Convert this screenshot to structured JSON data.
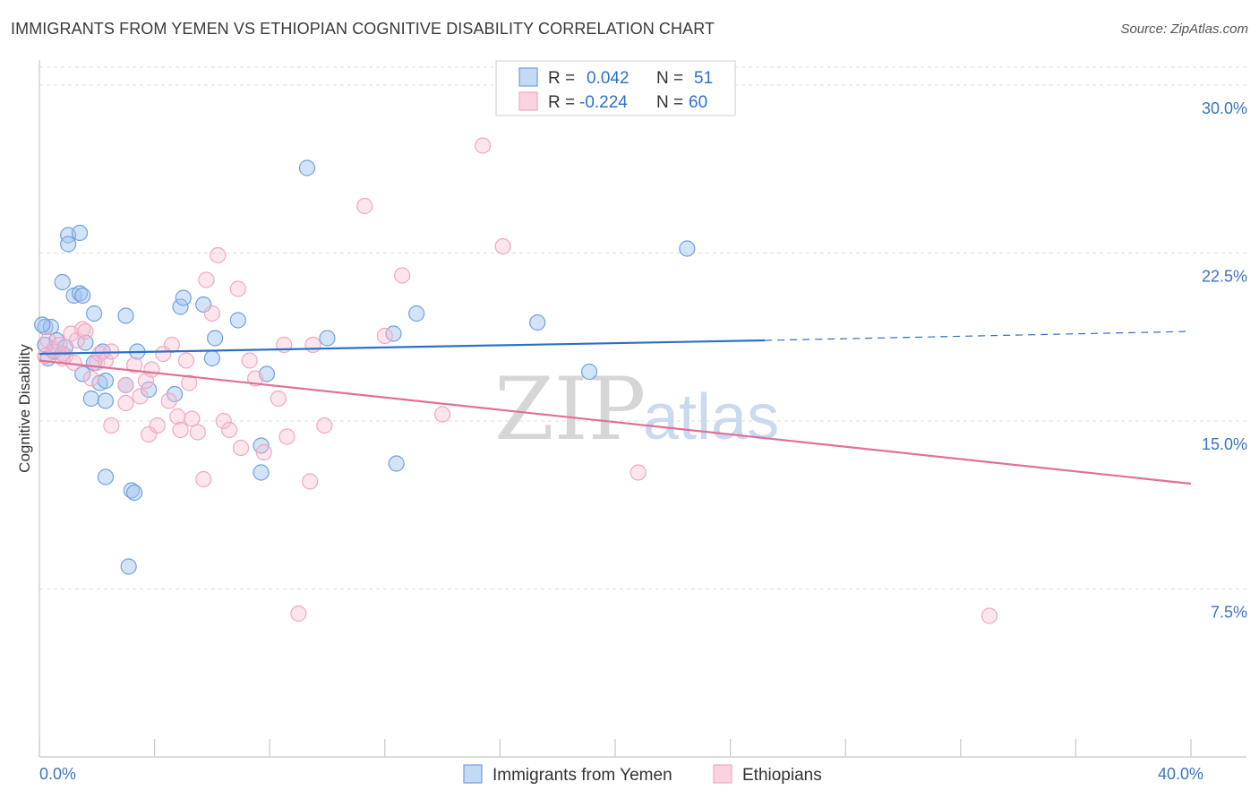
{
  "title": "IMMIGRANTS FROM YEMEN VS ETHIOPIAN COGNITIVE DISABILITY CORRELATION CHART",
  "source": "Source: ZipAtlas.com",
  "watermark": {
    "zip": "ZIP",
    "atlas": "atlas"
  },
  "chart_data": {
    "type": "scatter",
    "xlabel": "",
    "ylabel": "Cognitive Disability",
    "xlim": [
      0,
      40
    ],
    "ylim": [
      0,
      31
    ],
    "x_tick_labels": [
      {
        "value": 0,
        "label": "0.0%"
      },
      {
        "value": 40,
        "label": "40.0%"
      }
    ],
    "y_tick_labels": [
      {
        "value": 7.5,
        "label": "7.5%"
      },
      {
        "value": 15,
        "label": "15.0%"
      },
      {
        "value": 22.5,
        "label": "22.5%"
      },
      {
        "value": 30,
        "label": "30.0%"
      }
    ],
    "colors": {
      "yemen": "#6fa0e0",
      "yemen_line": "#2e6fca",
      "ethiopia": "#f2a6c0",
      "ethiopia_line": "#e07098",
      "tick": "#3b73c4",
      "grid": "#dcdcdc"
    },
    "legend": {
      "rows": [
        {
          "r_label": "R =",
          "r_value": "0.042",
          "n_label": "N =",
          "n_value": "51"
        },
        {
          "r_label": "R =",
          "r_value": "-0.224",
          "n_label": "N =",
          "n_value": "60"
        }
      ]
    },
    "series": [
      {
        "name": "Immigrants from Yemen",
        "trend": {
          "x0": 0,
          "y0": 18.0,
          "x1": 25.2,
          "y1": 18.6,
          "dash_x1": 40,
          "dash_y1": 19.0
        },
        "points": [
          [
            0.2,
            19.2
          ],
          [
            0.4,
            19.2
          ],
          [
            0.2,
            18.4
          ],
          [
            0.6,
            18.6
          ],
          [
            0.3,
            17.8
          ],
          [
            0.5,
            18.1
          ],
          [
            0.8,
            18.0
          ],
          [
            0.9,
            18.3
          ],
          [
            0.8,
            21.2
          ],
          [
            1.0,
            23.3
          ],
          [
            1.4,
            23.4
          ],
          [
            1.0,
            22.9
          ],
          [
            1.2,
            20.6
          ],
          [
            1.4,
            20.7
          ],
          [
            1.5,
            20.6
          ],
          [
            1.6,
            18.5
          ],
          [
            1.9,
            19.8
          ],
          [
            2.2,
            18.1
          ],
          [
            1.9,
            17.6
          ],
          [
            1.5,
            17.1
          ],
          [
            2.1,
            16.7
          ],
          [
            2.3,
            16.8
          ],
          [
            1.8,
            16.0
          ],
          [
            2.3,
            15.9
          ],
          [
            3.0,
            19.7
          ],
          [
            3.4,
            18.1
          ],
          [
            3.0,
            16.6
          ],
          [
            3.8,
            16.4
          ],
          [
            2.3,
            12.5
          ],
          [
            3.2,
            11.9
          ],
          [
            3.3,
            11.8
          ],
          [
            3.1,
            8.5
          ],
          [
            4.7,
            16.2
          ],
          [
            4.9,
            20.1
          ],
          [
            5.0,
            20.5
          ],
          [
            5.7,
            20.2
          ],
          [
            6.1,
            18.7
          ],
          [
            6.0,
            17.8
          ],
          [
            6.9,
            19.5
          ],
          [
            7.9,
            17.1
          ],
          [
            7.7,
            13.9
          ],
          [
            7.7,
            12.7
          ],
          [
            9.3,
            26.3
          ],
          [
            10.0,
            18.7
          ],
          [
            12.3,
            18.9
          ],
          [
            12.4,
            13.1
          ],
          [
            13.1,
            19.8
          ],
          [
            17.3,
            19.4
          ],
          [
            19.1,
            17.2
          ],
          [
            22.5,
            22.7
          ],
          [
            0.1,
            19.3
          ]
        ]
      },
      {
        "name": "Ethiopians",
        "trend": {
          "x0": 0,
          "y0": 17.7,
          "x1": 40,
          "y1": 12.2
        },
        "points": [
          [
            0.3,
            18.6
          ],
          [
            0.5,
            18.2
          ],
          [
            0.7,
            18.4
          ],
          [
            0.9,
            17.9
          ],
          [
            1.1,
            18.9
          ],
          [
            1.3,
            18.6
          ],
          [
            1.5,
            19.1
          ],
          [
            1.6,
            19.0
          ],
          [
            1.8,
            16.9
          ],
          [
            2.0,
            17.6
          ],
          [
            2.1,
            18.0
          ],
          [
            2.3,
            17.7
          ],
          [
            2.5,
            18.1
          ],
          [
            2.5,
            14.8
          ],
          [
            3.0,
            16.6
          ],
          [
            3.0,
            15.8
          ],
          [
            3.3,
            17.5
          ],
          [
            3.5,
            16.1
          ],
          [
            3.7,
            16.8
          ],
          [
            3.8,
            14.4
          ],
          [
            4.1,
            14.8
          ],
          [
            4.3,
            18.0
          ],
          [
            4.5,
            15.9
          ],
          [
            4.6,
            18.4
          ],
          [
            4.8,
            15.2
          ],
          [
            4.9,
            14.6
          ],
          [
            5.1,
            17.7
          ],
          [
            5.2,
            16.7
          ],
          [
            5.3,
            15.1
          ],
          [
            5.5,
            14.5
          ],
          [
            5.7,
            12.4
          ],
          [
            5.8,
            21.3
          ],
          [
            6.0,
            19.8
          ],
          [
            6.2,
            22.4
          ],
          [
            6.4,
            15.0
          ],
          [
            6.6,
            14.6
          ],
          [
            6.9,
            20.9
          ],
          [
            7.0,
            13.8
          ],
          [
            7.3,
            17.7
          ],
          [
            7.5,
            16.9
          ],
          [
            7.8,
            13.6
          ],
          [
            8.3,
            16.0
          ],
          [
            8.5,
            18.4
          ],
          [
            8.6,
            14.3
          ],
          [
            9.0,
            6.4
          ],
          [
            9.4,
            12.3
          ],
          [
            9.5,
            18.4
          ],
          [
            9.9,
            14.8
          ],
          [
            12.0,
            18.8
          ],
          [
            11.3,
            24.6
          ],
          [
            12.6,
            21.5
          ],
          [
            14.0,
            15.3
          ],
          [
            15.4,
            27.3
          ],
          [
            16.1,
            22.8
          ],
          [
            20.8,
            12.7
          ],
          [
            33.0,
            6.3
          ],
          [
            0.2,
            17.9
          ],
          [
            0.8,
            17.8
          ],
          [
            1.2,
            17.6
          ],
          [
            3.9,
            17.3
          ]
        ]
      }
    ]
  },
  "bottom_legend": [
    {
      "label": "Immigrants from Yemen"
    },
    {
      "label": "Ethiopians"
    }
  ]
}
